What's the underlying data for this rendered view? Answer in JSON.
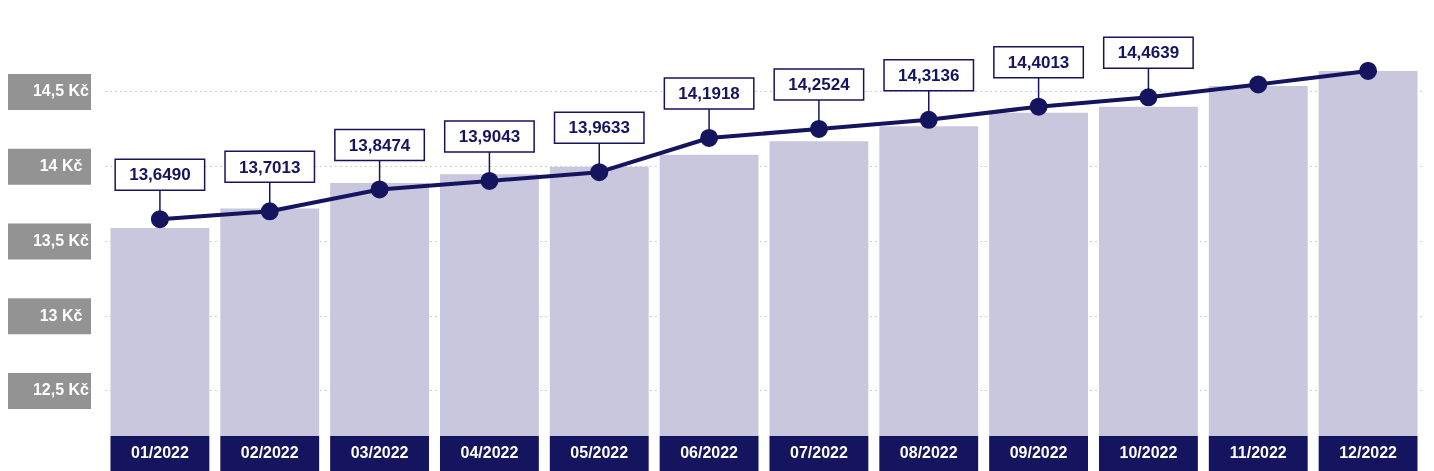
{
  "chart_data": {
    "type": "line",
    "categories": [
      "01/2022",
      "02/2022",
      "03/2022",
      "04/2022",
      "05/2022",
      "06/2022",
      "07/2022",
      "08/2022",
      "09/2022",
      "10/2022",
      "11/2022",
      "12/2022"
    ],
    "series": [
      {
        "type": "bar",
        "color": "#c8c7de",
        "values": [
          13.59,
          13.72,
          13.89,
          13.95,
          14.0,
          14.08,
          14.17,
          14.27,
          14.36,
          14.4,
          14.54,
          14.64
        ]
      },
      {
        "color": "#14155e",
        "values": [
          13.649,
          13.7013,
          13.8474,
          13.9043,
          13.9633,
          14.1918,
          14.2524,
          14.3136,
          14.4013,
          14.4639,
          14.55,
          14.64
        ],
        "value_labels": [
          "13,6490",
          "13,7013",
          "13,8474",
          "13,9043",
          "13,9633",
          "14,1918",
          "14,2524",
          "14,3136",
          "14,4013",
          "14,4639",
          null,
          null
        ]
      }
    ],
    "ylim": [
      12.2,
      14.7
    ],
    "yticks": [
      {
        "value": 12.5,
        "label": "12,5 Kč"
      },
      {
        "value": 13,
        "label": "13 Kč"
      },
      {
        "value": 13.5,
        "label": "13,5 Kč"
      },
      {
        "value": 14,
        "label": "14 Kč"
      },
      {
        "value": 14.5,
        "label": "14,5 Kč"
      }
    ],
    "grid": "y",
    "marker": "circle",
    "line_style": "solid"
  }
}
